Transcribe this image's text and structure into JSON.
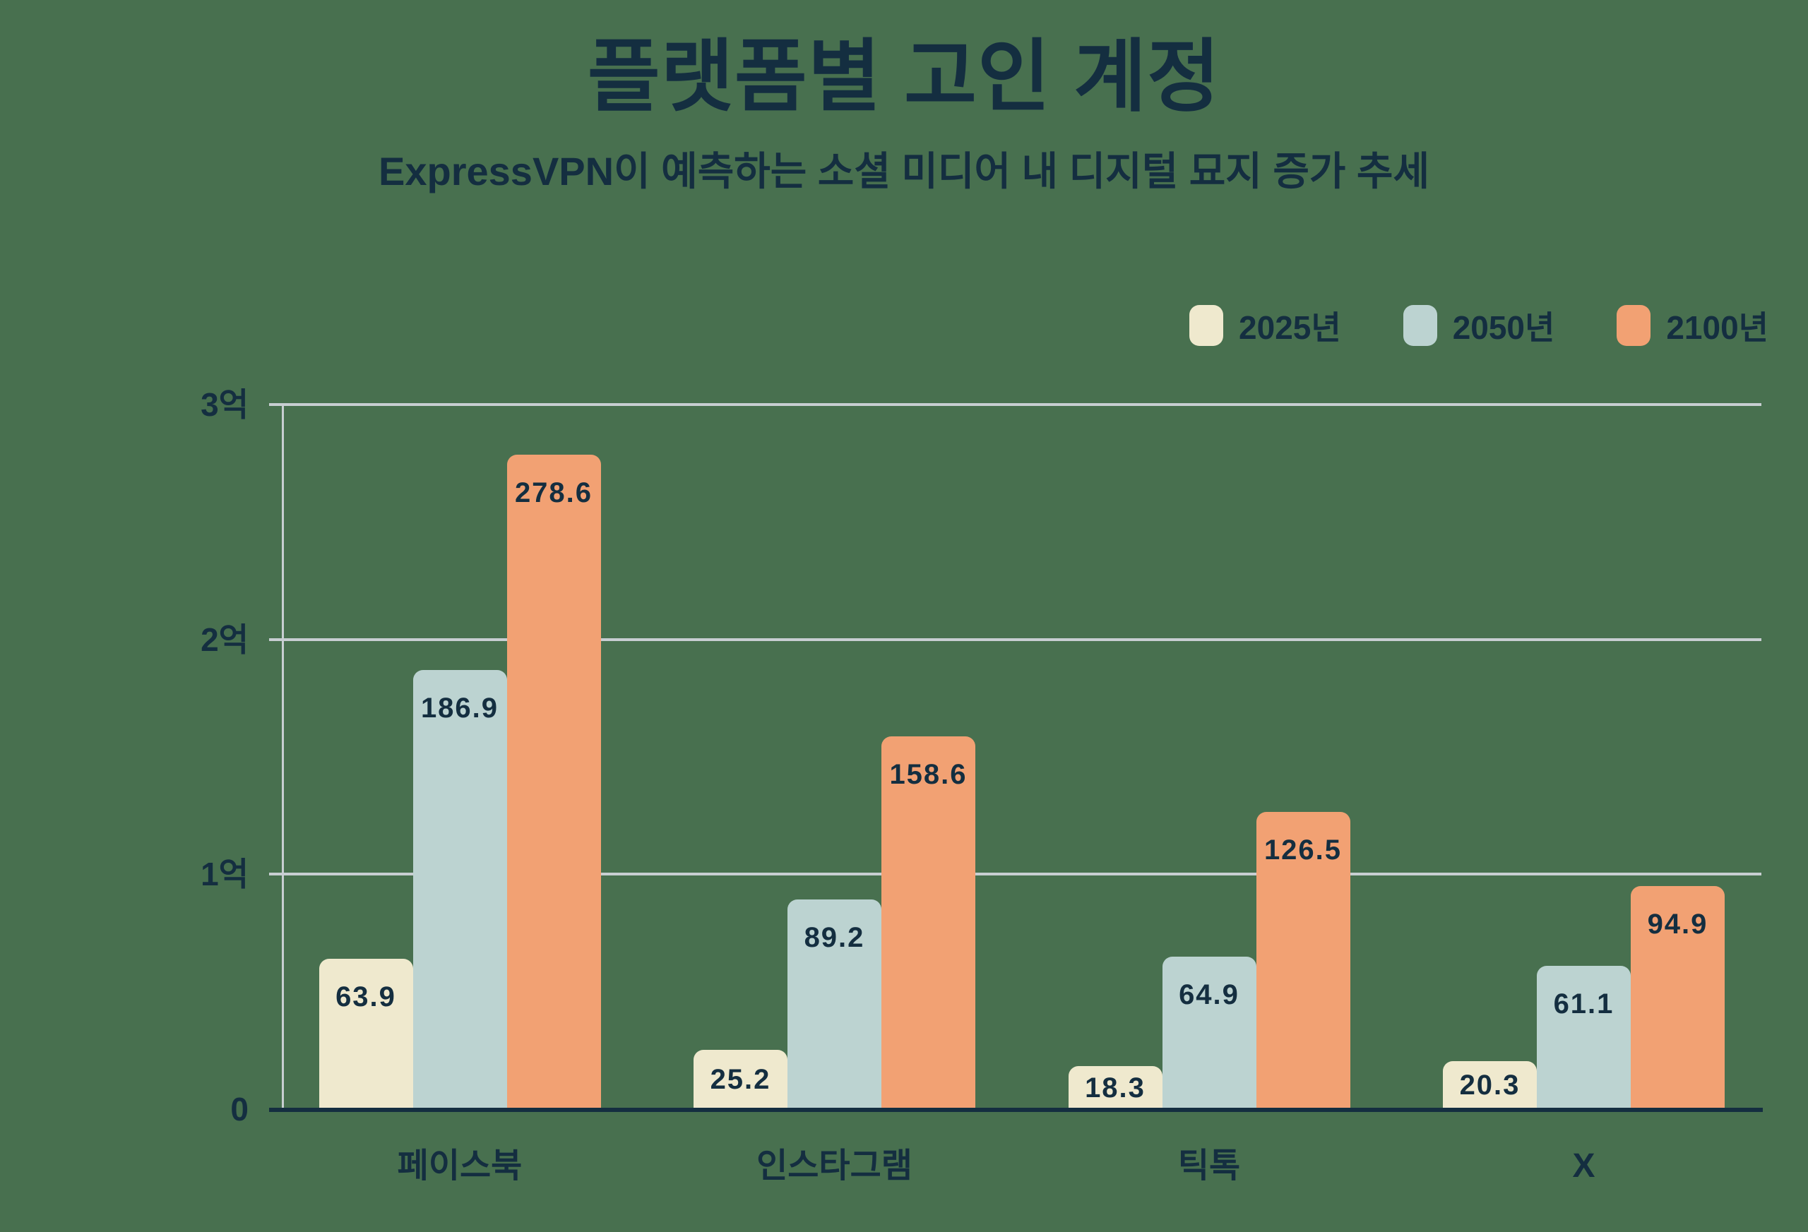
{
  "background_color": "#48704F",
  "text_color": "#142E40",
  "header": {
    "title": "플랫폼별 고인 계정",
    "subtitle": "ExpressVPN이 예측하는 소셜 미디어 내 디지털 묘지 증가 추세"
  },
  "chart_data": {
    "type": "bar",
    "title": "플랫폼별 고인 계정",
    "subtitle": "ExpressVPN이 예측하는 소셜 미디어 내 디지털 묘지 증가 추세",
    "categories": [
      "페이스북",
      "인스타그램",
      "틱톡",
      "X"
    ],
    "series": [
      {
        "name": "2025년",
        "color": "#EFE9CE",
        "values": [
          63.9,
          25.2,
          18.3,
          20.3
        ]
      },
      {
        "name": "2050년",
        "color": "#BCD3D1",
        "values": [
          186.9,
          89.2,
          64.9,
          61.1
        ]
      },
      {
        "name": "2100년",
        "color": "#F2A173",
        "values": [
          278.6,
          158.6,
          126.5,
          94.9
        ]
      }
    ],
    "y_axis": {
      "ticks": [
        {
          "value": 0,
          "label": "0"
        },
        {
          "value": 100,
          "label": "1억"
        },
        {
          "value": 200,
          "label": "2억"
        },
        {
          "value": 300,
          "label": "3억"
        }
      ],
      "max": 300
    },
    "ylim": [
      0,
      300
    ],
    "grid": true,
    "gridline_color": "#C8CED2",
    "baseline_color": "#142E40",
    "legend_position": "top-right",
    "value_labels": "inside-top"
  }
}
